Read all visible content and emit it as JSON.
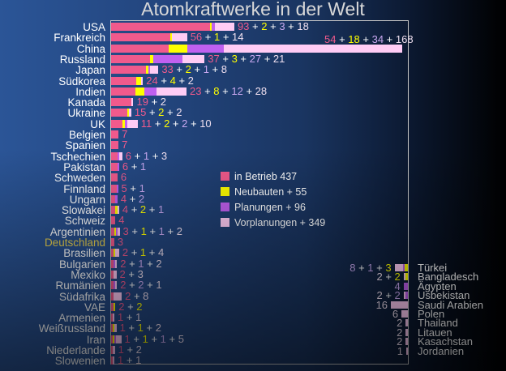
{
  "chart_data": {
    "type": "bar",
    "title": "Atomkraftwerke in der Welt",
    "colors": {
      "betrieb": "#f05a8c",
      "neubau": "#ffff00",
      "planung": "#c060f0",
      "vorplanung": "#ffccf5",
      "highlight": "#e8d050",
      "plus": "#ffffff"
    },
    "legend": [
      {
        "key": "betrieb",
        "label": "in Betrieb 437"
      },
      {
        "key": "neubau",
        "label": "Neubauten + 55"
      },
      {
        "key": "planung",
        "label": "Planungen + 96"
      },
      {
        "key": "vorplanung",
        "label": "Vorplanungen + 349"
      }
    ],
    "left_series": [
      {
        "country": "USA",
        "betrieb": 93,
        "neubau": 2,
        "planung": 3,
        "vorplanung": 18,
        "text": [
          [
            "93",
            "b"
          ],
          [
            "+",
            "p"
          ],
          [
            "2",
            "n"
          ],
          [
            "+",
            "p"
          ],
          [
            "3",
            "l"
          ],
          [
            "+",
            "p"
          ],
          [
            "18",
            "w"
          ]
        ]
      },
      {
        "country": "Frankreich",
        "betrieb": 56,
        "neubau": 1,
        "planung": 0,
        "vorplanung": 14,
        "text": [
          [
            "56",
            "b"
          ],
          [
            "+",
            "p"
          ],
          [
            "1",
            "n"
          ],
          [
            "+",
            "p"
          ],
          [
            "14",
            "w"
          ]
        ]
      },
      {
        "country": "China",
        "betrieb": 54,
        "neubau": 18,
        "planung": 34,
        "vorplanung": 168,
        "text": [
          [
            "54",
            "b"
          ],
          [
            "+",
            "p"
          ],
          [
            "18",
            "n"
          ],
          [
            "+",
            "p"
          ],
          [
            "34",
            "l"
          ],
          [
            "+",
            "p"
          ],
          [
            "168",
            "w"
          ]
        ]
      },
      {
        "country": "Russland",
        "betrieb": 37,
        "neubau": 3,
        "planung": 27,
        "vorplanung": 21,
        "text": [
          [
            "37",
            "b"
          ],
          [
            "+",
            "p"
          ],
          [
            "3",
            "n"
          ],
          [
            "+",
            "p"
          ],
          [
            "27",
            "l"
          ],
          [
            "+",
            "p"
          ],
          [
            "21",
            "w"
          ]
        ]
      },
      {
        "country": "Japan",
        "betrieb": 33,
        "neubau": 2,
        "planung": 1,
        "vorplanung": 8,
        "text": [
          [
            "33",
            "b"
          ],
          [
            "+",
            "p"
          ],
          [
            "2",
            "n"
          ],
          [
            "+",
            "p"
          ],
          [
            "1",
            "l"
          ],
          [
            "+",
            "p"
          ],
          [
            "8",
            "w"
          ]
        ]
      },
      {
        "country": "Südkorea",
        "betrieb": 24,
        "neubau": 4,
        "planung": 0,
        "vorplanung": 2,
        "text": [
          [
            "24",
            "b"
          ],
          [
            "+",
            "p"
          ],
          [
            "4",
            "n"
          ],
          [
            "+",
            "p"
          ],
          [
            "2",
            "w"
          ]
        ]
      },
      {
        "country": "Indien",
        "betrieb": 23,
        "neubau": 8,
        "planung": 12,
        "vorplanung": 28,
        "text": [
          [
            "23",
            "b"
          ],
          [
            "+",
            "p"
          ],
          [
            "8",
            "n"
          ],
          [
            "+",
            "p"
          ],
          [
            "12",
            "l"
          ],
          [
            "+",
            "p"
          ],
          [
            "28",
            "w"
          ]
        ]
      },
      {
        "country": "Kanada",
        "betrieb": 19,
        "neubau": 0,
        "planung": 0,
        "vorplanung": 2,
        "text": [
          [
            "19",
            "b"
          ],
          [
            "+",
            "p"
          ],
          [
            "2",
            "w"
          ]
        ]
      },
      {
        "country": "Ukraine",
        "betrieb": 15,
        "neubau": 2,
        "planung": 0,
        "vorplanung": 2,
        "text": [
          [
            "15",
            "b"
          ],
          [
            "+",
            "p"
          ],
          [
            "2",
            "n"
          ],
          [
            "+",
            "p"
          ],
          [
            "2",
            "w"
          ]
        ]
      },
      {
        "country": "UK",
        "betrieb": 11,
        "neubau": 2,
        "planung": 2,
        "vorplanung": 10,
        "text": [
          [
            "11",
            "b"
          ],
          [
            "+",
            "p"
          ],
          [
            "2",
            "n"
          ],
          [
            "+",
            "p"
          ],
          [
            "2",
            "l"
          ],
          [
            "+",
            "p"
          ],
          [
            "10",
            "w"
          ]
        ]
      },
      {
        "country": "Belgien",
        "betrieb": 7,
        "neubau": 0,
        "planung": 0,
        "vorplanung": 0,
        "text": [
          [
            "7",
            "b"
          ]
        ]
      },
      {
        "country": "Spanien",
        "betrieb": 7,
        "neubau": 0,
        "planung": 0,
        "vorplanung": 0,
        "text": [
          [
            "7",
            "b"
          ]
        ]
      },
      {
        "country": "Tschechien",
        "betrieb": 6,
        "neubau": 0,
        "planung": 1,
        "vorplanung": 3,
        "text": [
          [
            "6",
            "b"
          ],
          [
            "+",
            "p"
          ],
          [
            "1",
            "l"
          ],
          [
            "+",
            "p"
          ],
          [
            "3",
            "w"
          ]
        ]
      },
      {
        "country": "Pakistan",
        "betrieb": 6,
        "neubau": 0,
        "planung": 1,
        "vorplanung": 0,
        "text": [
          [
            "6",
            "b"
          ],
          [
            "+",
            "p"
          ],
          [
            "1",
            "l"
          ]
        ]
      },
      {
        "country": "Schweden",
        "betrieb": 6,
        "neubau": 0,
        "planung": 0,
        "vorplanung": 0,
        "text": [
          [
            "6",
            "b"
          ]
        ]
      },
      {
        "country": "Finnland",
        "betrieb": 5,
        "neubau": 0,
        "planung": 1,
        "vorplanung": 0,
        "text": [
          [
            "5",
            "b"
          ],
          [
            "+",
            "p"
          ],
          [
            "1",
            "l"
          ]
        ]
      },
      {
        "country": "Ungarn",
        "betrieb": 4,
        "neubau": 0,
        "planung": 2,
        "vorplanung": 0,
        "text": [
          [
            "4",
            "b"
          ],
          [
            "+",
            "p"
          ],
          [
            "2",
            "l"
          ]
        ]
      },
      {
        "country": "Slowakei",
        "betrieb": 4,
        "neubau": 2,
        "planung": 0,
        "vorplanung": 1,
        "text": [
          [
            "4",
            "b"
          ],
          [
            "+",
            "p"
          ],
          [
            "2",
            "n"
          ],
          [
            "+",
            "p"
          ],
          [
            "1",
            "l"
          ]
        ]
      },
      {
        "country": "Schweiz",
        "betrieb": 4,
        "neubau": 0,
        "planung": 0,
        "vorplanung": 0,
        "text": [
          [
            "4",
            "b"
          ]
        ]
      },
      {
        "country": "Argentinien",
        "betrieb": 3,
        "neubau": 1,
        "planung": 1,
        "vorplanung": 2,
        "text": [
          [
            "3",
            "b"
          ],
          [
            "+",
            "p"
          ],
          [
            "1",
            "n"
          ],
          [
            "+",
            "p"
          ],
          [
            "1",
            "l"
          ],
          [
            "+",
            "p"
          ],
          [
            "2",
            "w"
          ]
        ]
      },
      {
        "country": "Deutschland",
        "highlight": true,
        "betrieb": 3,
        "neubau": 0,
        "planung": 0,
        "vorplanung": 0,
        "text": [
          [
            "3",
            "b"
          ]
        ]
      },
      {
        "country": "Brasilien",
        "betrieb": 2,
        "neubau": 1,
        "planung": 0,
        "vorplanung": 4,
        "text": [
          [
            "2",
            "b"
          ],
          [
            "+",
            "p"
          ],
          [
            "1",
            "n"
          ],
          [
            "+",
            "p"
          ],
          [
            "4",
            "w"
          ]
        ]
      },
      {
        "country": "Bulgarien",
        "betrieb": 2,
        "neubau": 0,
        "planung": 1,
        "vorplanung": 2,
        "text": [
          [
            "2",
            "b"
          ],
          [
            "+",
            "p"
          ],
          [
            "1",
            "l"
          ],
          [
            "+",
            "p"
          ],
          [
            "2",
            "w"
          ]
        ]
      },
      {
        "country": "Mexiko",
        "betrieb": 2,
        "neubau": 0,
        "planung": 0,
        "vorplanung": 3,
        "text": [
          [
            "2",
            "b"
          ],
          [
            "+",
            "p"
          ],
          [
            "3",
            "w"
          ]
        ]
      },
      {
        "country": "Rumänien",
        "betrieb": 2,
        "neubau": 0,
        "planung": 2,
        "vorplanung": 1,
        "text": [
          [
            "2",
            "b"
          ],
          [
            "+",
            "p"
          ],
          [
            "2",
            "l"
          ],
          [
            "+",
            "p"
          ],
          [
            "1",
            "w"
          ]
        ]
      },
      {
        "country": "Südafrika",
        "betrieb": 2,
        "neubau": 0,
        "planung": 0,
        "vorplanung": 8,
        "text": [
          [
            "2",
            "b"
          ],
          [
            "+",
            "p"
          ],
          [
            "8",
            "w"
          ]
        ]
      },
      {
        "country": "VAE",
        "betrieb": 2,
        "neubau": 2,
        "planung": 0,
        "vorplanung": 0,
        "text": [
          [
            "2",
            "b"
          ],
          [
            "+",
            "p"
          ],
          [
            "2",
            "n"
          ]
        ]
      },
      {
        "country": "Armenien",
        "betrieb": 1,
        "neubau": 0,
        "planung": 0,
        "vorplanung": 1,
        "text": [
          [
            "1",
            "b"
          ],
          [
            "+",
            "p"
          ],
          [
            "1",
            "w"
          ]
        ]
      },
      {
        "country": "Weißrussland",
        "betrieb": 1,
        "neubau": 1,
        "planung": 0,
        "vorplanung": 2,
        "text": [
          [
            "1",
            "b"
          ],
          [
            "+",
            "p"
          ],
          [
            "1",
            "n"
          ],
          [
            "+",
            "p"
          ],
          [
            "2",
            "w"
          ]
        ]
      },
      {
        "country": "Iran",
        "betrieb": 1,
        "neubau": 1,
        "planung": 1,
        "vorplanung": 5,
        "text": [
          [
            "1",
            "b"
          ],
          [
            "+",
            "p"
          ],
          [
            "1",
            "n"
          ],
          [
            "+",
            "p"
          ],
          [
            "1",
            "l"
          ],
          [
            "+",
            "p"
          ],
          [
            "5",
            "w"
          ]
        ]
      },
      {
        "country": "Niederlande",
        "betrieb": 1,
        "neubau": 0,
        "planung": 0,
        "vorplanung": 2,
        "text": [
          [
            "1",
            "b"
          ],
          [
            "+",
            "p"
          ],
          [
            "2",
            "w"
          ]
        ]
      },
      {
        "country": "Slowenien",
        "betrieb": 1,
        "neubau": 0,
        "planung": 0,
        "vorplanung": 1,
        "text": [
          [
            "1",
            "b"
          ],
          [
            "+",
            "p"
          ],
          [
            "1",
            "w"
          ]
        ]
      }
    ],
    "right_series": [
      {
        "country": "Türkei",
        "neubau": 3,
        "planung": 1,
        "vorplanung": 8,
        "text": [
          [
            "8",
            "l"
          ],
          [
            "+",
            "p"
          ],
          [
            "1",
            "l"
          ],
          [
            "+",
            "p"
          ],
          [
            "3",
            "n"
          ]
        ]
      },
      {
        "country": "Bangladesch",
        "neubau": 2,
        "planung": 0,
        "vorplanung": 2,
        "text": [
          [
            "2",
            "w"
          ],
          [
            "+",
            "p"
          ],
          [
            "2",
            "n"
          ]
        ]
      },
      {
        "country": "Ägypten",
        "neubau": 0,
        "planung": 4,
        "vorplanung": 0,
        "text": [
          [
            "4",
            "l"
          ]
        ]
      },
      {
        "country": "Usbekistan",
        "neubau": 0,
        "planung": 2,
        "vorplanung": 2,
        "text": [
          [
            "2",
            "w"
          ],
          [
            "+",
            "p"
          ],
          [
            "2",
            "l"
          ]
        ]
      },
      {
        "country": "Saudi Arabien",
        "neubau": 0,
        "planung": 0,
        "vorplanung": 16,
        "text": [
          [
            "16",
            "w"
          ]
        ]
      },
      {
        "country": "Polen",
        "neubau": 0,
        "planung": 0,
        "vorplanung": 6,
        "text": [
          [
            "6",
            "w"
          ]
        ]
      },
      {
        "country": "Thailand",
        "neubau": 0,
        "planung": 0,
        "vorplanung": 2,
        "text": [
          [
            "2",
            "w"
          ]
        ]
      },
      {
        "country": "Litauen",
        "neubau": 0,
        "planung": 0,
        "vorplanung": 2,
        "text": [
          [
            "2",
            "w"
          ]
        ]
      },
      {
        "country": "Kasachstan",
        "neubau": 0,
        "planung": 0,
        "vorplanung": 2,
        "text": [
          [
            "2",
            "w"
          ]
        ]
      },
      {
        "country": "Jordanien",
        "neubau": 0,
        "planung": 0,
        "vorplanung": 1,
        "text": [
          [
            "1",
            "w"
          ]
        ]
      }
    ]
  }
}
